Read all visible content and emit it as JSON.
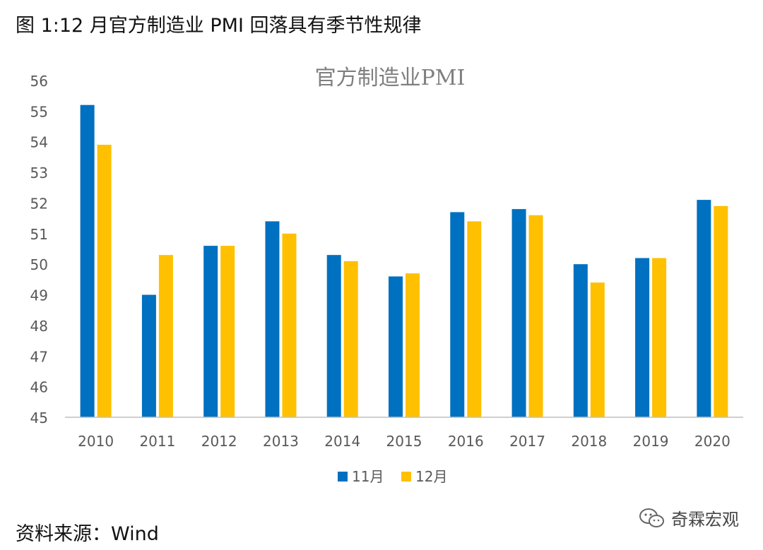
{
  "figure": {
    "heading": "图 1:12 月官方制造业 PMI 回落具有季节性规律",
    "source": "资料来源：Wind",
    "watermark": "奇霖宏观"
  },
  "colors": {
    "series_11": "#0070C0",
    "series_12": "#FFC000",
    "axis": "#BFBFBF",
    "tick_text": "#595959",
    "chart_title": "#7F7F7F"
  },
  "chart_data": {
    "type": "bar",
    "title": "官方制造业PMI",
    "xlabel": "",
    "ylabel": "",
    "categories": [
      "2010",
      "2011",
      "2012",
      "2013",
      "2014",
      "2015",
      "2016",
      "2017",
      "2018",
      "2019",
      "2020"
    ],
    "series": [
      {
        "name": "11月",
        "values": [
          55.2,
          49.0,
          50.6,
          51.4,
          50.3,
          49.6,
          51.7,
          51.8,
          50.0,
          50.2,
          52.1
        ]
      },
      {
        "name": "12月",
        "values": [
          53.9,
          50.3,
          50.6,
          51.0,
          50.1,
          49.7,
          51.4,
          51.6,
          49.4,
          50.2,
          51.9
        ]
      }
    ],
    "ylim": [
      45,
      56
    ],
    "yticks": [
      45,
      46,
      47,
      48,
      49,
      50,
      51,
      52,
      53,
      54,
      55,
      56
    ],
    "grid": false,
    "legend": "bottom-center"
  }
}
